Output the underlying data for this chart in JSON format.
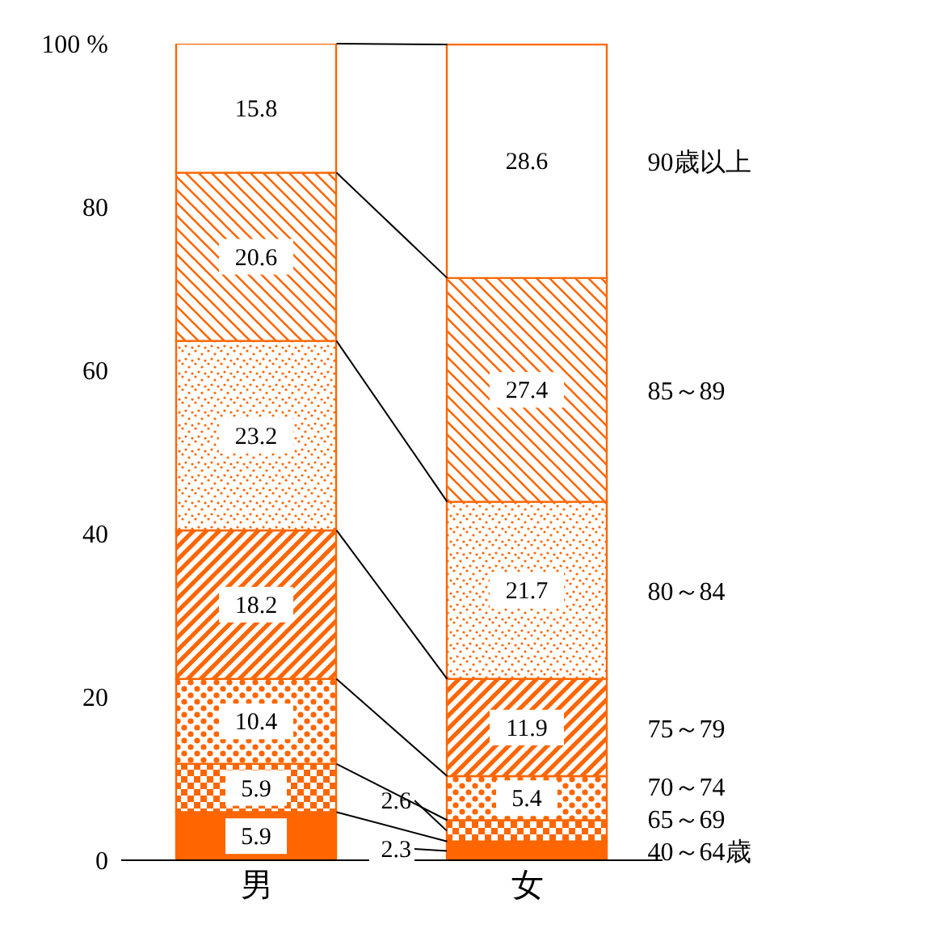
{
  "chart_data": {
    "type": "bar",
    "stacked": true,
    "categories": [
      "男",
      "女"
    ],
    "series": [
      {
        "name": "40～64歳",
        "color": "#ff6600",
        "values": [
          5.9,
          2.3
        ]
      },
      {
        "name": "65～69",
        "color": "#ff6600",
        "values": [
          5.9,
          2.6
        ]
      },
      {
        "name": "70～74",
        "color": "#ff6600",
        "values": [
          10.4,
          5.4
        ]
      },
      {
        "name": "75～79",
        "color": "#ff6600",
        "values": [
          18.2,
          11.9
        ]
      },
      {
        "name": "80～84",
        "color": "#ff6600",
        "values": [
          23.2,
          21.7
        ]
      },
      {
        "name": "85～89",
        "color": "#ff6600",
        "values": [
          20.6,
          27.4
        ]
      },
      {
        "name": "90歳以上",
        "color": "#ff6600",
        "values": [
          15.8,
          28.6
        ]
      }
    ],
    "ylim": [
      0,
      100
    ],
    "yticks": [
      0,
      20,
      40,
      60,
      80,
      {
        "value": 100,
        "label": "100 %"
      }
    ],
    "data_labels": true,
    "grid": false
  }
}
